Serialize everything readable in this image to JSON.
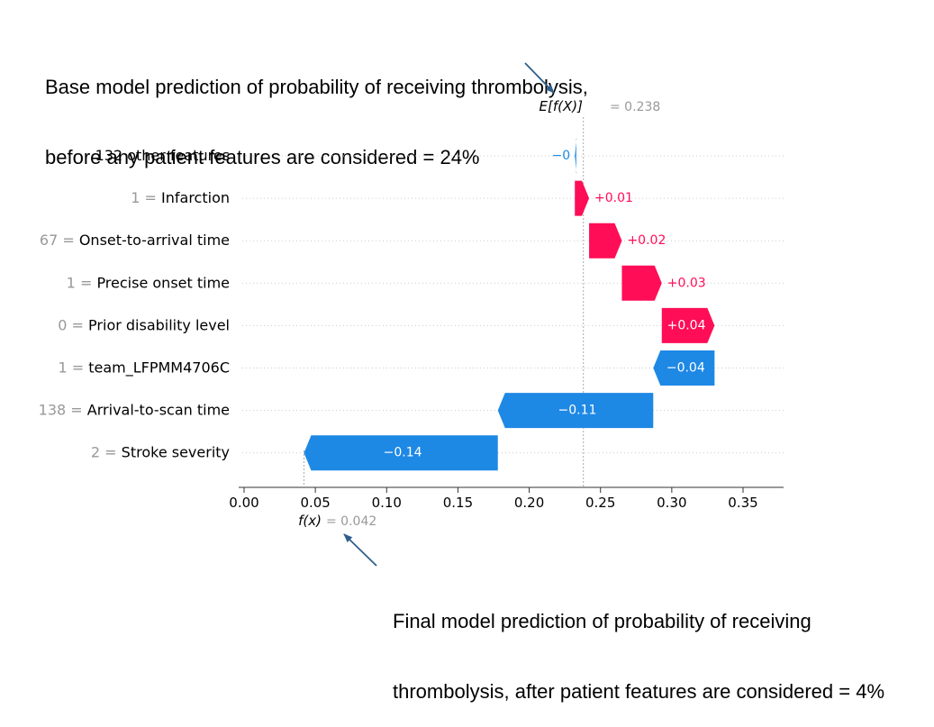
{
  "annotations": {
    "base": {
      "line1": "Base model prediction of probability of receiving thrombolysis,",
      "line2": "before any patient features are considered = 24%"
    },
    "final": {
      "line1": "Final model prediction of probability of receiving",
      "line2": "thrombolysis, after patient features are considered = 4%"
    }
  },
  "chart_data": {
    "type": "waterfall",
    "base_label": "E[f(X)]",
    "base_value": 0.238,
    "base_value_text": "= 0.238",
    "final_label": "f(x)",
    "final_value": 0.042,
    "final_value_text": "= 0.042",
    "features": [
      {
        "value": "",
        "name": "132 other features",
        "contribution": -0.001,
        "label": "−0"
      },
      {
        "value": "1",
        "name": "Infarction",
        "contribution": 0.01,
        "label": "+0.01"
      },
      {
        "value": "67",
        "name": "Onset-to-arrival time",
        "contribution": 0.023,
        "label": "+0.02"
      },
      {
        "value": "1",
        "name": "Precise onset time",
        "contribution": 0.028,
        "label": "+0.03"
      },
      {
        "value": "0",
        "name": "Prior disability level",
        "contribution": 0.037,
        "label": "+0.04"
      },
      {
        "value": "1",
        "name": "team_LFPMM4706C",
        "contribution": -0.043,
        "label": "−0.04"
      },
      {
        "value": "138",
        "name": "Arrival-to-scan time",
        "contribution": -0.109,
        "label": "−0.11"
      },
      {
        "value": "2",
        "name": "Stroke severity",
        "contribution": -0.136,
        "label": "−0.14"
      }
    ],
    "xlim": [
      -0.002,
      0.38
    ],
    "xticks": [
      0.0,
      0.05,
      0.1,
      0.15,
      0.2,
      0.25,
      0.3,
      0.35
    ],
    "xtick_labels": [
      "0.00",
      "0.05",
      "0.10",
      "0.15",
      "0.20",
      "0.25",
      "0.30",
      "0.35"
    ],
    "colors": {
      "positive": "#ff0d57",
      "negative": "#1e88e5",
      "grid": "#cccccc",
      "muted": "#999999"
    },
    "grid": true
  }
}
